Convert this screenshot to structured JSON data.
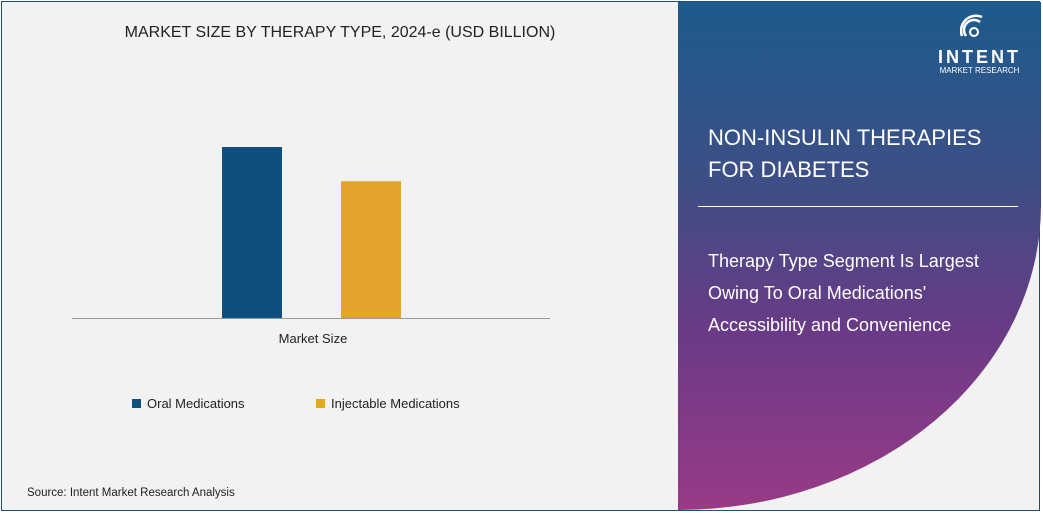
{
  "chart_data": {
    "type": "bar",
    "title": "MARKET SIZE BY THERAPY TYPE, 2024-e (USD BILLION)",
    "categories": [
      "Market Size"
    ],
    "series": [
      {
        "name": "Oral Medications",
        "values": [
          100
        ],
        "color": "#0e4f7d"
      },
      {
        "name": "Injectable Medications",
        "values": [
          80
        ],
        "color": "#e3a52d"
      }
    ],
    "ylim": [
      0,
      100
    ],
    "grid": false,
    "legend": "bottom"
  },
  "source": "Source:  Intent Market Research Analysis",
  "panel": {
    "title": "NON-INSULIN THERAPIES FOR DIABETES",
    "subtitle": "Therapy Type Segment Is Largest Owing To Oral Medications' Accessibility and Convenience"
  },
  "logo": {
    "name": "INTENT",
    "tagline": "MARKET RESEARCH",
    "tm": "™"
  }
}
